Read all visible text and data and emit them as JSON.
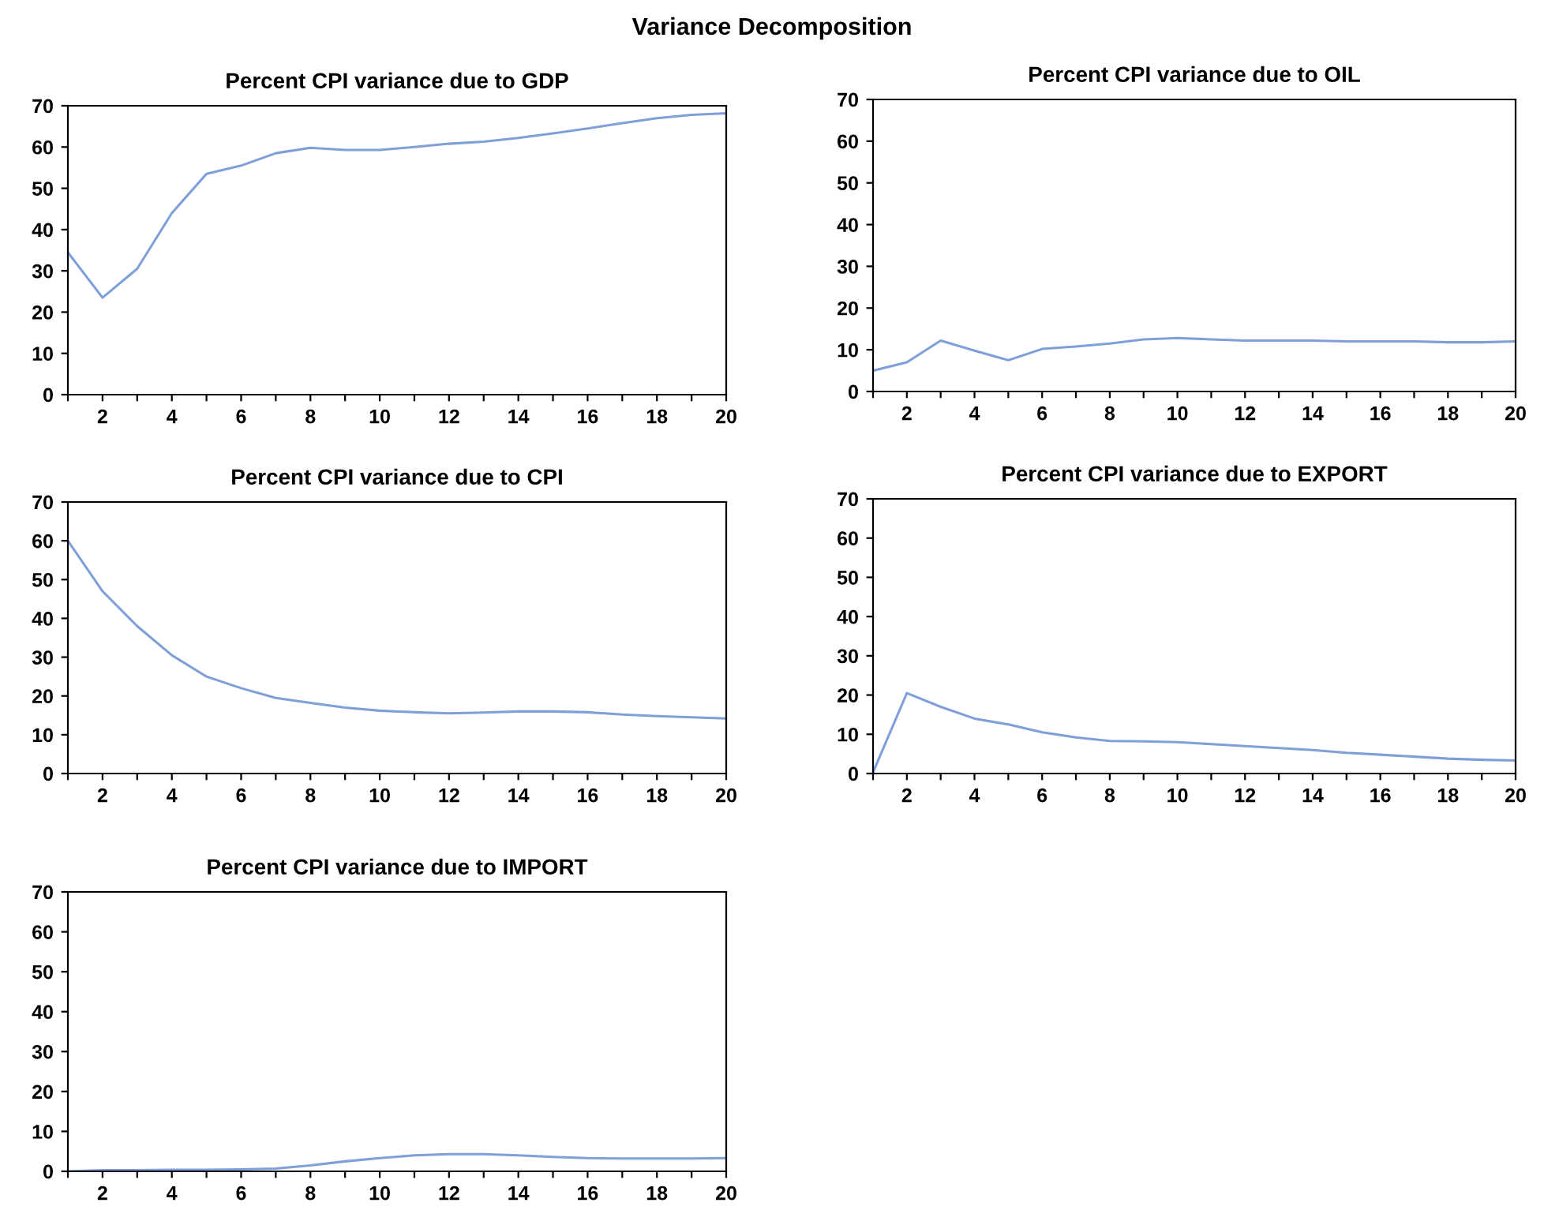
{
  "chart_data": [
    {
      "type": "line",
      "title": "Percent CPI variance due to GDP",
      "annotations": [
        "Variance Decomposition"
      ],
      "x": [
        1,
        2,
        3,
        4,
        5,
        6,
        7,
        8,
        9,
        10,
        11,
        12,
        13,
        14,
        15,
        16,
        17,
        18,
        19,
        20
      ],
      "series": [
        {
          "color": "#7f9fd8",
          "values": [
            34.5,
            23.5,
            30.5,
            44,
            53.5,
            55.5,
            58.5,
            59.8,
            59.3,
            59.3,
            60,
            60.8,
            61.3,
            62.2,
            63.3,
            64.5,
            65.8,
            67,
            67.8,
            68.2
          ]
        }
      ],
      "xlim": [
        1,
        20
      ],
      "ylim": [
        0,
        70
      ],
      "xticks": [
        {
          "value": 1,
          "label": null
        },
        2,
        {
          "value": 3,
          "label": null
        },
        4,
        {
          "value": 5,
          "label": null
        },
        6,
        {
          "value": 7,
          "label": null
        },
        8,
        {
          "value": 9,
          "label": null
        },
        10,
        {
          "value": 11,
          "label": null
        },
        12,
        {
          "value": 13,
          "label": null
        },
        14,
        {
          "value": 15,
          "label": null
        },
        16,
        {
          "value": 17,
          "label": null
        },
        18,
        {
          "value": 19,
          "label": null
        },
        20
      ],
      "yticks": [
        0,
        10,
        20,
        30,
        40,
        50,
        60,
        70
      ],
      "grid": false,
      "legend": false
    },
    {
      "type": "line",
      "title": "Percent CPI variance due to OIL",
      "x": [
        1,
        2,
        3,
        4,
        5,
        6,
        7,
        8,
        9,
        10,
        11,
        12,
        13,
        14,
        15,
        16,
        17,
        18,
        19,
        20
      ],
      "series": [
        {
          "color": "#7f9fd8",
          "values": [
            5,
            7,
            12.2,
            9.8,
            7.5,
            10.2,
            10.8,
            11.5,
            12.5,
            12.8,
            12.5,
            12.2,
            12.2,
            12.2,
            12,
            12,
            12,
            11.8,
            11.8,
            12
          ]
        }
      ],
      "xlim": [
        1,
        20
      ],
      "ylim": [
        0,
        70
      ],
      "xticks": [
        {
          "value": 1,
          "label": null
        },
        2,
        {
          "value": 3,
          "label": null
        },
        4,
        {
          "value": 5,
          "label": null
        },
        6,
        {
          "value": 7,
          "label": null
        },
        8,
        {
          "value": 9,
          "label": null
        },
        10,
        {
          "value": 11,
          "label": null
        },
        12,
        {
          "value": 13,
          "label": null
        },
        14,
        {
          "value": 15,
          "label": null
        },
        16,
        {
          "value": 17,
          "label": null
        },
        18,
        {
          "value": 19,
          "label": null
        },
        20
      ],
      "yticks": [
        0,
        10,
        20,
        30,
        40,
        50,
        60,
        70
      ],
      "grid": false,
      "legend": false
    },
    {
      "type": "line",
      "title": "Percent CPI variance due to CPI",
      "x": [
        1,
        2,
        3,
        4,
        5,
        6,
        7,
        8,
        9,
        10,
        11,
        12,
        13,
        14,
        15,
        16,
        17,
        18,
        19,
        20
      ],
      "series": [
        {
          "color": "#7f9fd8",
          "values": [
            60,
            47,
            38,
            30.5,
            25,
            22,
            19.5,
            18.2,
            17,
            16.2,
            15.8,
            15.5,
            15.7,
            16,
            16,
            15.8,
            15.2,
            14.8,
            14.5,
            14.2
          ]
        }
      ],
      "xlim": [
        1,
        20
      ],
      "ylim": [
        0,
        70
      ],
      "xticks": [
        {
          "value": 1,
          "label": null
        },
        2,
        {
          "value": 3,
          "label": null
        },
        4,
        {
          "value": 5,
          "label": null
        },
        6,
        {
          "value": 7,
          "label": null
        },
        8,
        {
          "value": 9,
          "label": null
        },
        10,
        {
          "value": 11,
          "label": null
        },
        12,
        {
          "value": 13,
          "label": null
        },
        14,
        {
          "value": 15,
          "label": null
        },
        16,
        {
          "value": 17,
          "label": null
        },
        18,
        {
          "value": 19,
          "label": null
        },
        20
      ],
      "yticks": [
        0,
        10,
        20,
        30,
        40,
        50,
        60,
        70
      ],
      "grid": false,
      "legend": false
    },
    {
      "type": "line",
      "title": "Percent CPI variance due to EXPORT",
      "x": [
        1,
        2,
        3,
        4,
        5,
        6,
        7,
        8,
        9,
        10,
        11,
        12,
        13,
        14,
        15,
        16,
        17,
        18,
        19,
        20
      ],
      "series": [
        {
          "color": "#7f9fd8",
          "values": [
            0.3,
            20.5,
            17,
            14,
            12.5,
            10.5,
            9.2,
            8.3,
            8.2,
            8,
            7.5,
            7,
            6.5,
            6,
            5.3,
            4.8,
            4.3,
            3.8,
            3.5,
            3.3
          ]
        }
      ],
      "xlim": [
        1,
        20
      ],
      "ylim": [
        0,
        70
      ],
      "xticks": [
        {
          "value": 1,
          "label": null
        },
        2,
        {
          "value": 3,
          "label": null
        },
        4,
        {
          "value": 5,
          "label": null
        },
        6,
        {
          "value": 7,
          "label": null
        },
        8,
        {
          "value": 9,
          "label": null
        },
        10,
        {
          "value": 11,
          "label": null
        },
        12,
        {
          "value": 13,
          "label": null
        },
        14,
        {
          "value": 15,
          "label": null
        },
        16,
        {
          "value": 17,
          "label": null
        },
        18,
        {
          "value": 19,
          "label": null
        },
        20
      ],
      "yticks": [
        0,
        10,
        20,
        30,
        40,
        50,
        60,
        70
      ],
      "grid": false,
      "legend": false
    },
    {
      "type": "line",
      "title": "Percent CPI variance due to IMPORT",
      "x": [
        1,
        2,
        3,
        4,
        5,
        6,
        7,
        8,
        9,
        10,
        11,
        12,
        13,
        14,
        15,
        16,
        17,
        18,
        19,
        20
      ],
      "series": [
        {
          "color": "#7f9fd8",
          "values": [
            0,
            0.3,
            0.3,
            0.4,
            0.4,
            0.5,
            0.7,
            1.5,
            2.5,
            3.3,
            4,
            4.3,
            4.3,
            4,
            3.6,
            3.3,
            3.2,
            3.2,
            3.2,
            3.3
          ]
        }
      ],
      "xlim": [
        1,
        20
      ],
      "ylim": [
        0,
        70
      ],
      "xticks": [
        {
          "value": 1,
          "label": null
        },
        2,
        {
          "value": 3,
          "label": null
        },
        4,
        {
          "value": 5,
          "label": null
        },
        6,
        {
          "value": 7,
          "label": null
        },
        8,
        {
          "value": 9,
          "label": null
        },
        10,
        {
          "value": 11,
          "label": null
        },
        12,
        {
          "value": 13,
          "label": null
        },
        14,
        {
          "value": 15,
          "label": null
        },
        16,
        {
          "value": 17,
          "label": null
        },
        18,
        {
          "value": 19,
          "label": null
        },
        20
      ],
      "yticks": [
        0,
        10,
        20,
        30,
        40,
        50,
        60,
        70
      ],
      "grid": false,
      "legend": false
    }
  ]
}
